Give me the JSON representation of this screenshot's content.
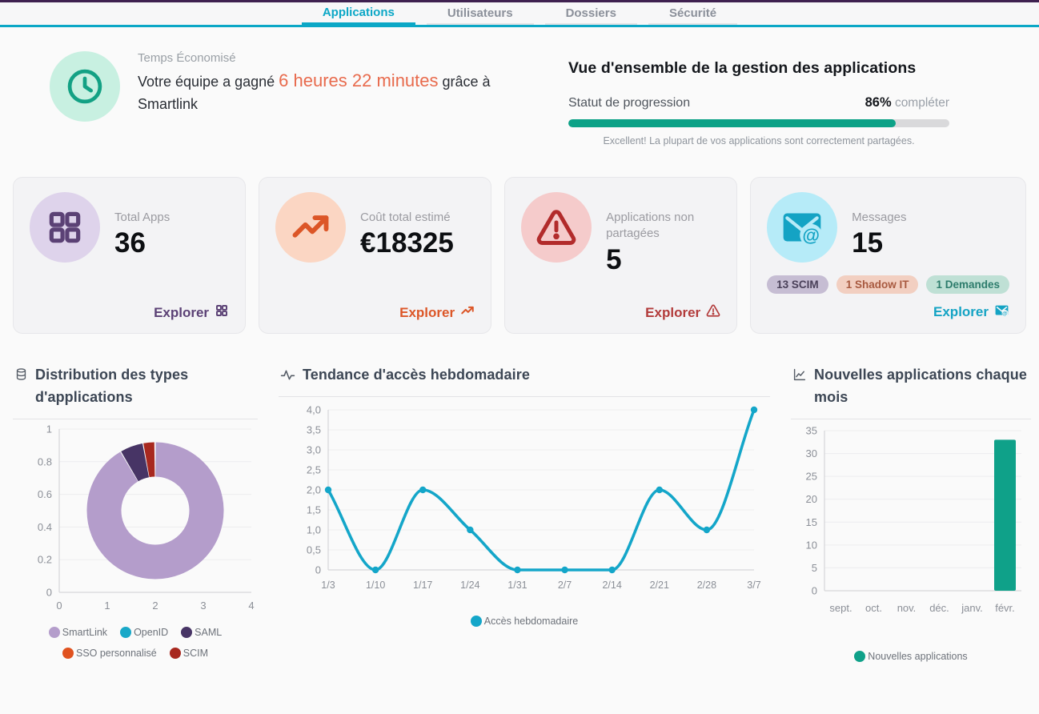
{
  "theme": {
    "topbar_purple": "#3f2150",
    "accent_cyan": "#0ba7c6",
    "highlight_orange": "#e86a4c",
    "progress_green": "#0ca287"
  },
  "header": {
    "tabs": [
      {
        "label": "Applications",
        "active": true
      },
      {
        "label": "Utilisateurs",
        "active": false
      },
      {
        "label": "Dossiers",
        "active": false
      },
      {
        "label": "Sécurité",
        "active": false
      }
    ]
  },
  "hero": {
    "time_saved": {
      "icon": "clock-icon",
      "label": "Temps Économisé",
      "text_before": "Votre équipe a gagné",
      "highlight": "6 heures 22 minutes",
      "text_after": "grâce à Smartlink"
    },
    "overview": {
      "title": "Vue d'ensemble de la gestion des applications",
      "progress_label": "Statut de progression",
      "progress_value": "86%",
      "progress_suffix": "compléter",
      "progress_percent": 86,
      "caption": "Excellent! La plupart de vos applications sont correctement partagées."
    }
  },
  "stat_cards": [
    {
      "icon": "grid-icon",
      "label": "Total Apps",
      "value": "36",
      "explore_label": "Explorer",
      "accent": "#5b4175"
    },
    {
      "icon": "trending-up-icon",
      "label": "Coût total estimé",
      "value": "€18325",
      "explore_label": "Explorer",
      "accent": "#dc5627"
    },
    {
      "icon": "warning-triangle-icon",
      "label": "Applications non partagées",
      "value": "5",
      "explore_label": "Explorer",
      "accent": "#b22b2b"
    },
    {
      "icon": "mail-at-icon",
      "label": "Messages",
      "value": "15",
      "explore_label": "Explorer",
      "accent": "#14a3c4",
      "badges": [
        {
          "text": "13 SCIM"
        },
        {
          "text": "1 Shadow IT"
        },
        {
          "text": "1 Demandes"
        }
      ]
    }
  ],
  "chart_data": [
    {
      "type": "pie",
      "donut": true,
      "title": "Distribution des types d'applications",
      "title_icon": "database-icon",
      "labels": [
        "SmartLink",
        "OpenID",
        "SAML",
        "SSO personnalisé",
        "SCIM"
      ],
      "values": [
        33,
        0,
        2,
        0,
        1
      ],
      "colors": [
        "#b49dcb",
        "#19a8c8",
        "#473465",
        "#e0521f",
        "#a8281f"
      ],
      "y_ticks": [
        "1",
        "0.8",
        "0.6",
        "0.4",
        "0.2",
        "0"
      ],
      "x_ticks": [
        "0",
        "1",
        "2",
        "3",
        "4"
      ],
      "grid": true,
      "legend_position": "bottom"
    },
    {
      "type": "line",
      "title": "Tendance d'accès hebdomadaire",
      "title_icon": "activity-icon",
      "x": [
        "1/3",
        "1/10",
        "1/17",
        "1/24",
        "1/31",
        "2/7",
        "2/14",
        "2/21",
        "2/28",
        "3/7"
      ],
      "series": [
        {
          "name": "Accès hebdomadaire",
          "values": [
            2,
            0,
            2,
            1,
            0,
            0,
            0,
            2,
            1,
            4
          ],
          "color": "#14a6c9"
        }
      ],
      "y_ticks": [
        "4,0",
        "3,5",
        "3,0",
        "2,5",
        "2,0",
        "1,5",
        "1,0",
        "0,5",
        "0"
      ],
      "ylim": [
        0,
        4
      ],
      "grid": true,
      "legend_position": "bottom"
    },
    {
      "type": "bar",
      "title": "Nouvelles applications chaque mois",
      "title_icon": "chart-line-icon",
      "categories": [
        "sept.",
        "oct.",
        "nov.",
        "déc.",
        "janv.",
        "févr."
      ],
      "series": [
        {
          "name": "Nouvelles applications",
          "values": [
            0,
            0,
            0,
            0,
            0,
            33
          ],
          "color": "#0fa189"
        }
      ],
      "y_ticks": [
        "35",
        "30",
        "25",
        "20",
        "15",
        "10",
        "5",
        "0"
      ],
      "ylim": [
        0,
        35
      ],
      "grid": true,
      "legend_position": "bottom"
    }
  ]
}
